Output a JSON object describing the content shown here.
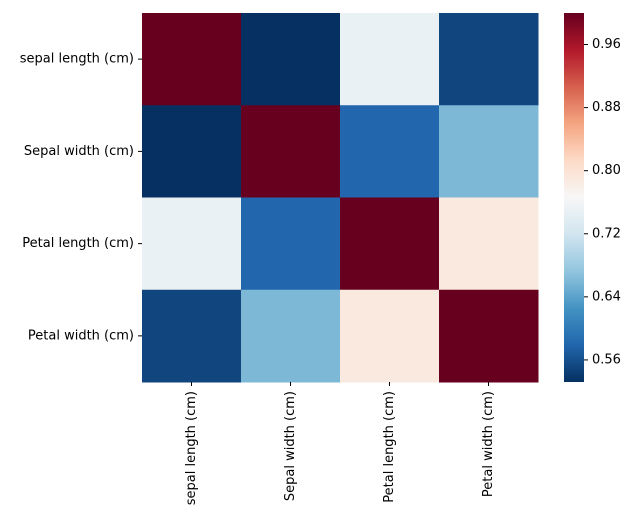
{
  "chart_data": {
    "type": "heatmap",
    "title": "",
    "xlabel": "",
    "ylabel": "",
    "rows": [
      "sepal length (cm)",
      "Sepal width (cm)",
      "Petal length (cm)",
      "Petal width (cm)"
    ],
    "columns": [
      "sepal length (cm)",
      "Sepal width (cm)",
      "Petal length (cm)",
      "Petal width (cm)"
    ],
    "values": [
      [
        1.0,
        0.53,
        0.75,
        0.55
      ],
      [
        0.53,
        1.0,
        0.58,
        0.66
      ],
      [
        0.75,
        0.58,
        1.0,
        0.79
      ],
      [
        0.55,
        0.66,
        0.79,
        1.0
      ]
    ],
    "colorbar": {
      "colormap": "RdBu_r",
      "vmin": 0.532,
      "vmax": 1.0,
      "ticks": [
        "0.56",
        "0.64",
        "0.72",
        "0.80",
        "0.88",
        "0.96"
      ]
    },
    "grid": false,
    "legend": "colorbar-right"
  }
}
